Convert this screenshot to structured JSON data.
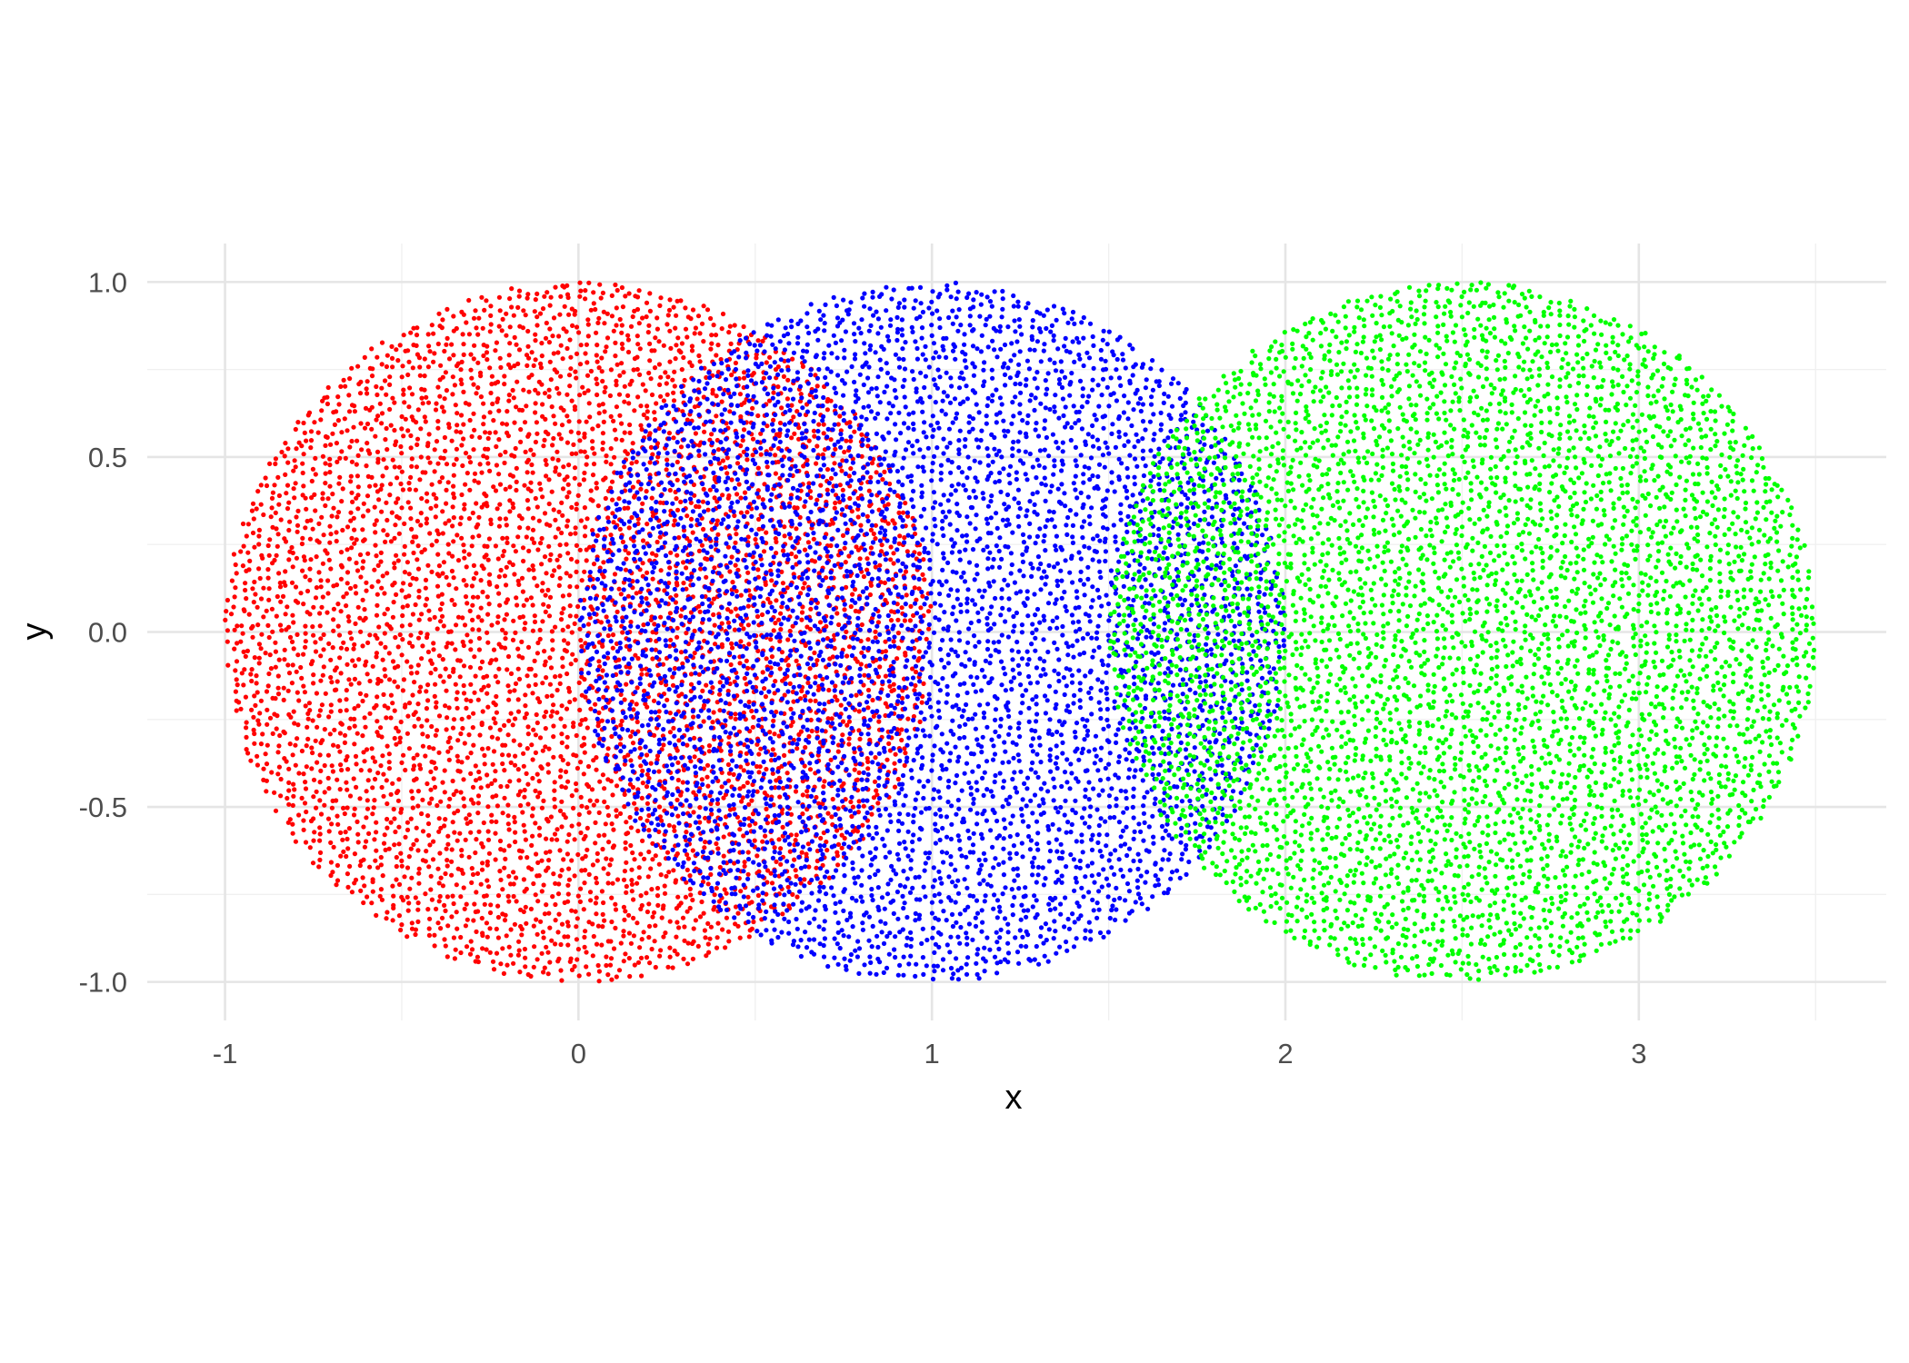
{
  "chart_data": {
    "type": "scatter",
    "title": "",
    "xlabel": "x",
    "ylabel": "y",
    "xlim": [
      -1.22,
      3.7
    ],
    "ylim": [
      -1.11,
      1.11
    ],
    "x_ticks": [
      -1,
      0,
      1,
      2,
      3
    ],
    "x_tick_labels": [
      "-1",
      "0",
      "1",
      "2",
      "3"
    ],
    "y_ticks": [
      -1.0,
      -0.5,
      0.0,
      0.5,
      1.0
    ],
    "y_tick_labels": [
      "-1.0",
      "-0.5",
      "0.0",
      "0.5",
      "1.0"
    ],
    "grid": true,
    "legend": "none",
    "series": [
      {
        "color": "#ff0000",
        "shape": "disk",
        "center": [
          0,
          0
        ],
        "radius": 1,
        "points_per_axis": 80
      },
      {
        "color": "#0000ff",
        "shape": "disk",
        "center": [
          1,
          0
        ],
        "radius": 1,
        "points_per_axis": 80
      },
      {
        "color": "#00ff00",
        "shape": "disk",
        "center": [
          2.5,
          0
        ],
        "radius": 1,
        "points_per_axis": 80
      }
    ]
  }
}
